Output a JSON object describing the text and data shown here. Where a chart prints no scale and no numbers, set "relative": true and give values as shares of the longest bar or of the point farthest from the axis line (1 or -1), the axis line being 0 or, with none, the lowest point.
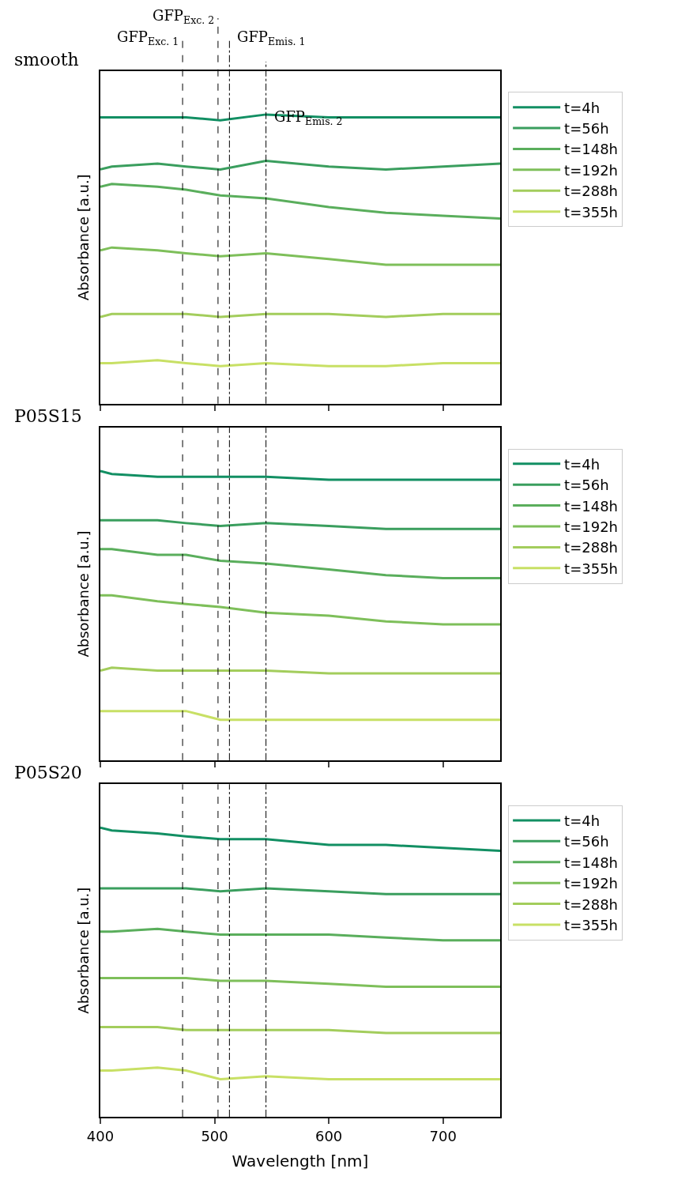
{
  "chart_data": [
    {
      "type": "line",
      "title": "smooth",
      "ylabel": "Absorbance [a.u.]",
      "relative": true,
      "x": [
        400,
        410,
        450,
        475,
        505,
        545,
        600,
        650,
        700,
        750
      ],
      "xlim": [
        400,
        750
      ],
      "xticks": [
        400,
        500,
        600,
        700
      ],
      "tick_labels": false,
      "legend": "right",
      "marker": "none",
      "line_style": "solid",
      "ref_lines": [
        {
          "axis": "x",
          "value": 472,
          "label": "GFP$_{Exc. 1}$",
          "line_style": "dashed",
          "color": "#000000"
        },
        {
          "axis": "x",
          "value": 503,
          "label": "GFP$_{Exc. 2}$",
          "line_style": "dashed",
          "color": "#000000"
        },
        {
          "axis": "x",
          "value": 513,
          "label": "GFP$_{Emis. 1}$",
          "line_style": "dashdot",
          "color": "#000000"
        },
        {
          "axis": "x",
          "value": 545,
          "label": "GFP$_{Emis. 2}$",
          "line_style": "dashdot",
          "color": "#000000"
        }
      ],
      "series": [
        {
          "name": "t=4h",
          "color": "#128f63",
          "values": [
            0.99,
            0.99,
            0.99,
            0.99,
            0.98,
            1.0,
            0.99,
            0.99,
            0.99,
            0.99
          ]
        },
        {
          "name": "t=56h",
          "color": "#3a9e5e",
          "values": [
            0.81,
            0.82,
            0.83,
            0.82,
            0.81,
            0.84,
            0.82,
            0.81,
            0.82,
            0.83
          ]
        },
        {
          "name": "t=148h",
          "color": "#5aae5c",
          "values": [
            0.75,
            0.76,
            0.75,
            0.74,
            0.72,
            0.71,
            0.68,
            0.66,
            0.65,
            0.64
          ]
        },
        {
          "name": "t=192h",
          "color": "#7ebf5a",
          "values": [
            0.53,
            0.54,
            0.53,
            0.52,
            0.51,
            0.52,
            0.5,
            0.48,
            0.48,
            0.48
          ]
        },
        {
          "name": "t=288h",
          "color": "#a3cd5c",
          "values": [
            0.3,
            0.31,
            0.31,
            0.31,
            0.3,
            0.31,
            0.31,
            0.3,
            0.31,
            0.31
          ]
        },
        {
          "name": "t=355h",
          "color": "#c8e065",
          "values": [
            0.14,
            0.14,
            0.15,
            0.14,
            0.13,
            0.14,
            0.13,
            0.13,
            0.14,
            0.14
          ]
        }
      ]
    },
    {
      "type": "line",
      "title": "P05S15",
      "ylabel": "Absorbance [a.u.]",
      "relative": true,
      "x": [
        400,
        410,
        450,
        475,
        505,
        545,
        600,
        650,
        700,
        750
      ],
      "xlim": [
        400,
        750
      ],
      "xticks": [
        400,
        500,
        600,
        700
      ],
      "tick_labels": false,
      "legend": "right",
      "marker": "none",
      "line_style": "solid",
      "ref_lines": [
        {
          "axis": "x",
          "value": 472,
          "line_style": "dashed",
          "color": "#000000"
        },
        {
          "axis": "x",
          "value": 503,
          "line_style": "dashed",
          "color": "#000000"
        },
        {
          "axis": "x",
          "value": 513,
          "line_style": "dashdot",
          "color": "#000000"
        },
        {
          "axis": "x",
          "value": 545,
          "line_style": "dashdot",
          "color": "#000000"
        }
      ],
      "series": [
        {
          "name": "t=4h",
          "color": "#128f63",
          "values": [
            1.0,
            0.99,
            0.98,
            0.98,
            0.98,
            0.98,
            0.97,
            0.97,
            0.97,
            0.97
          ]
        },
        {
          "name": "t=56h",
          "color": "#3a9e5e",
          "values": [
            0.83,
            0.83,
            0.83,
            0.82,
            0.81,
            0.82,
            0.81,
            0.8,
            0.8,
            0.8
          ]
        },
        {
          "name": "t=148h",
          "color": "#5aae5c",
          "values": [
            0.73,
            0.73,
            0.71,
            0.71,
            0.69,
            0.68,
            0.66,
            0.64,
            0.63,
            0.63
          ]
        },
        {
          "name": "t=192h",
          "color": "#7ebf5a",
          "values": [
            0.57,
            0.57,
            0.55,
            0.54,
            0.53,
            0.51,
            0.5,
            0.48,
            0.47,
            0.47
          ]
        },
        {
          "name": "t=288h",
          "color": "#a3cd5c",
          "values": [
            0.31,
            0.32,
            0.31,
            0.31,
            0.31,
            0.31,
            0.3,
            0.3,
            0.3,
            0.3
          ]
        },
        {
          "name": "t=355h",
          "color": "#c8e065",
          "values": [
            0.17,
            0.17,
            0.17,
            0.17,
            0.14,
            0.14,
            0.14,
            0.14,
            0.14,
            0.14
          ]
        }
      ]
    },
    {
      "type": "line",
      "title": "P05S20",
      "ylabel": "Absorbance [a.u.]",
      "xlabel": "Wavelength [nm]",
      "relative": true,
      "x": [
        400,
        410,
        450,
        475,
        505,
        545,
        600,
        650,
        700,
        750
      ],
      "xlim": [
        400,
        750
      ],
      "xticks": [
        400,
        500,
        600,
        700
      ],
      "tick_labels": "x",
      "legend": "right",
      "marker": "none",
      "line_style": "solid",
      "ref_lines": [
        {
          "axis": "x",
          "value": 472,
          "line_style": "dashed",
          "color": "#000000"
        },
        {
          "axis": "x",
          "value": 503,
          "line_style": "dashed",
          "color": "#000000"
        },
        {
          "axis": "x",
          "value": 513,
          "line_style": "dashdot",
          "color": "#000000"
        },
        {
          "axis": "x",
          "value": 545,
          "line_style": "dashdot",
          "color": "#000000"
        }
      ],
      "series": [
        {
          "name": "t=4h",
          "color": "#128f63",
          "values": [
            1.0,
            0.99,
            0.98,
            0.97,
            0.96,
            0.96,
            0.94,
            0.94,
            0.93,
            0.92
          ]
        },
        {
          "name": "t=56h",
          "color": "#3a9e5e",
          "values": [
            0.79,
            0.79,
            0.79,
            0.79,
            0.78,
            0.79,
            0.78,
            0.77,
            0.77,
            0.77
          ]
        },
        {
          "name": "t=148h",
          "color": "#5aae5c",
          "values": [
            0.64,
            0.64,
            0.65,
            0.64,
            0.63,
            0.63,
            0.63,
            0.62,
            0.61,
            0.61
          ]
        },
        {
          "name": "t=192h",
          "color": "#7ebf5a",
          "values": [
            0.48,
            0.48,
            0.48,
            0.48,
            0.47,
            0.47,
            0.46,
            0.45,
            0.45,
            0.45
          ]
        },
        {
          "name": "t=288h",
          "color": "#a3cd5c",
          "values": [
            0.31,
            0.31,
            0.31,
            0.3,
            0.3,
            0.3,
            0.3,
            0.29,
            0.29,
            0.29
          ]
        },
        {
          "name": "t=355h",
          "color": "#c8e065",
          "values": [
            0.16,
            0.16,
            0.17,
            0.16,
            0.13,
            0.14,
            0.13,
            0.13,
            0.13,
            0.13
          ]
        }
      ]
    }
  ]
}
